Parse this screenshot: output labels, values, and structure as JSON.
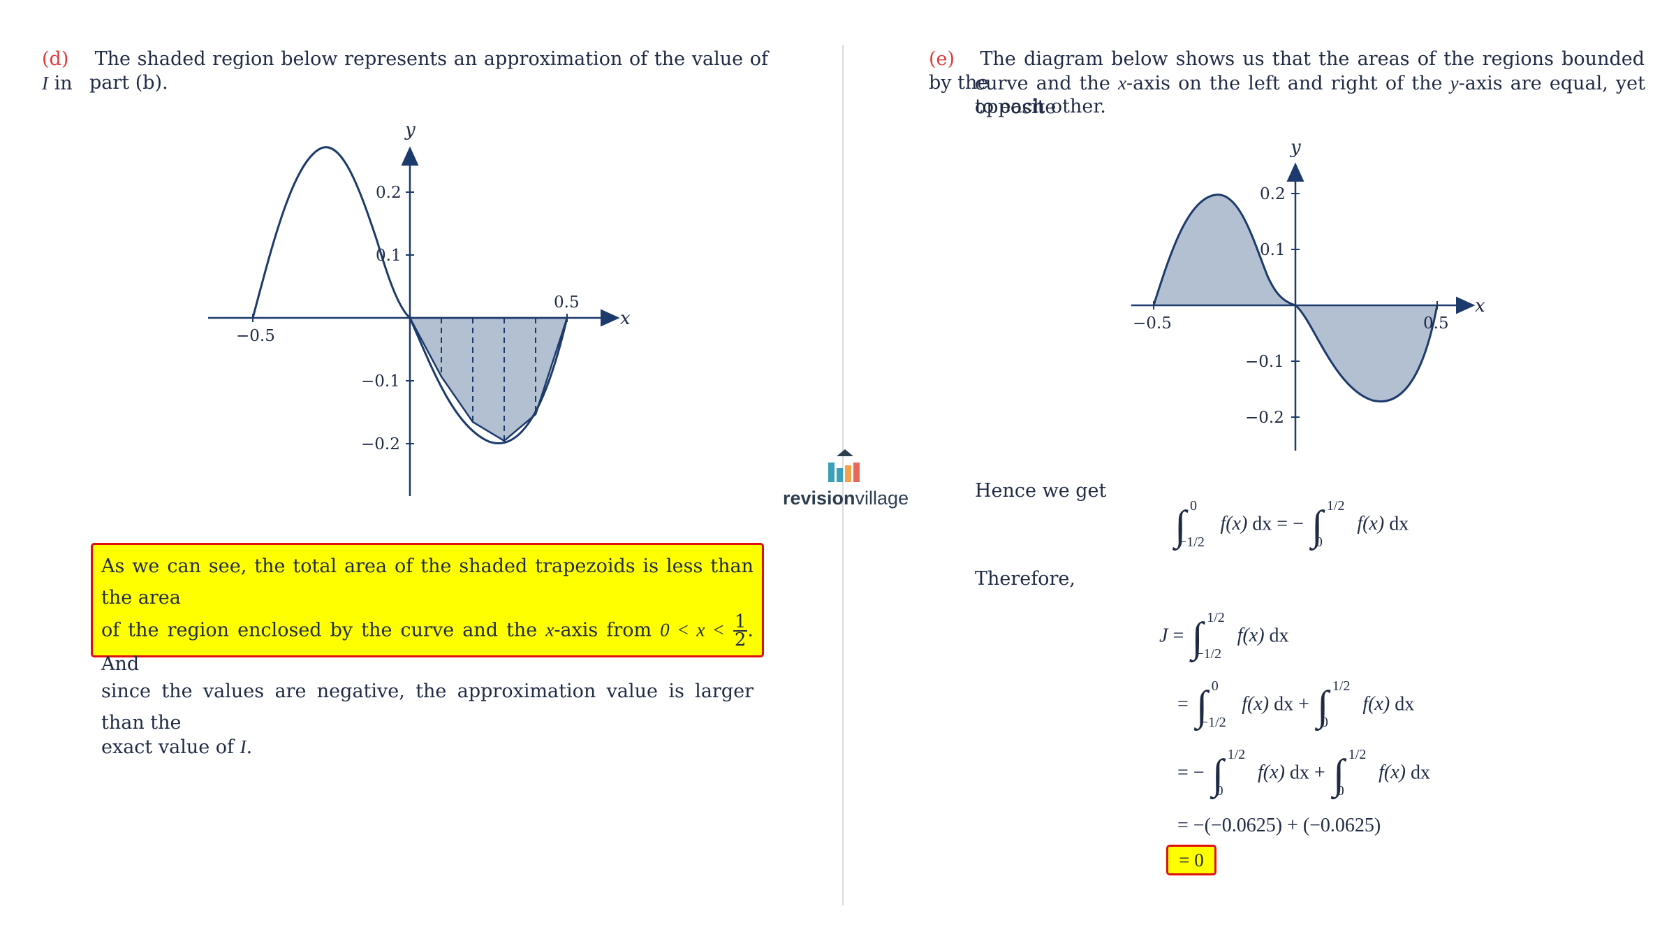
{
  "part_d": {
    "label": "(d)",
    "text_line1": "The shaded region below represents an approximation of the value of",
    "var_I": "I",
    "text_in": "in",
    "text_line2": "part (b).",
    "graph": {
      "y_label": "y",
      "x_label": "x",
      "tick_x_neg": "−0.5",
      "tick_x_pos": "0.5",
      "tick_y_02": "0.2",
      "tick_y_01": "0.1",
      "tick_y_m01": "−0.1",
      "tick_y_m02": "−0.2"
    },
    "conclusion": {
      "p1": "As we can see, the total area of the shaded trapezoids is less than the area",
      "p2a": "of the region enclosed by the curve and the",
      "p2b": "-axis from",
      "p2c": "0 < x <",
      "frac_num": "1",
      "frac_den": "2",
      "p2d": ". And",
      "p3": "since the values are negative, the approximation value is larger than the",
      "p4a": "exact value of",
      "p4b": "I",
      "p4c": "."
    }
  },
  "part_e": {
    "label": "(e)",
    "line1": "The diagram below shows us that the areas of the regions bounded by the",
    "line2a": "curve and the",
    "line2b": "-axis on the left and right of the",
    "line2c": "-axis are equal, yet opposite",
    "line3": "to each other.",
    "graph": {
      "y_label": "y",
      "x_label": "x",
      "tick_x_neg": "−0.5",
      "tick_x_pos": "0.5",
      "tick_y_02": "0.2",
      "tick_y_01": "0.1",
      "tick_y_m01": "−0.1",
      "tick_y_m02": "−0.2"
    },
    "hence": "Hence we get",
    "therefore": "Therefore,",
    "step4": "= −(−0.0625) + (−0.0625)",
    "answer": "= 0"
  },
  "math": {
    "x": "x",
    "y": "y",
    "J": "J",
    "fx": "f(x)",
    "dx": "dx",
    "upper_half": "1/2",
    "lower_neg_half": "−1/2",
    "zero": "0",
    "equals": "=",
    "minus": "−",
    "plus": "+",
    "integral": "∫"
  },
  "logo": {
    "bold": "revision",
    "normal": "village"
  },
  "colors": {
    "label_red": "#e03a3a",
    "ink": "#1f2a44",
    "shade": "#b3c0d1",
    "curve": "#1c3a6b",
    "highlight": "#ffff00"
  }
}
